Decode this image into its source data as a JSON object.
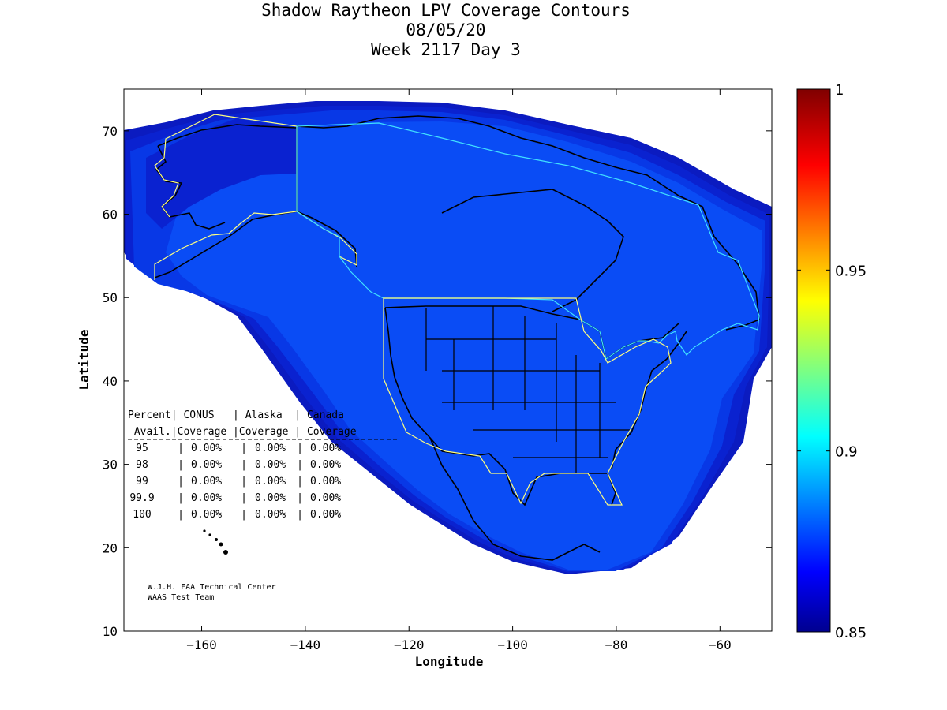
{
  "title": {
    "line1": "Shadow Raytheon LPV Coverage Contours",
    "line2": "08/05/20",
    "line3": "Week 2117 Day 3"
  },
  "axes": {
    "xlabel": "Longitude",
    "ylabel": "Latitude",
    "xlim": [
      -175,
      -50
    ],
    "ylim": [
      10,
      75
    ],
    "xticks": [
      -160,
      -140,
      -120,
      -100,
      -80,
      -60
    ],
    "yticks": [
      10,
      20,
      30,
      40,
      50,
      60,
      70
    ]
  },
  "colorbar": {
    "min": 0.85,
    "max": 1,
    "ticks": [
      {
        "value": 0.85,
        "label": "0.85"
      },
      {
        "value": 0.9,
        "label": "0.9"
      },
      {
        "value": 0.95,
        "label": "0.95"
      },
      {
        "value": 1,
        "label": "1"
      }
    ]
  },
  "table": {
    "header1": "Percent| CONUS   | Alaska  | Canada",
    "header2": " Avail.|Coverage |Coverage | Coverage",
    "rows": [
      {
        "percent": "95",
        "conus": "0.00%",
        "alaska": "0.00%",
        "canada": "0.00%"
      },
      {
        "percent": "98",
        "conus": "0.00%",
        "alaska": "0.00%",
        "canada": "0.00%"
      },
      {
        "percent": "99",
        "conus": "0.00%",
        "alaska": "0.00%",
        "canada": "0.00%"
      },
      {
        "percent": "99.9",
        "conus": "0.00%",
        "alaska": "0.00%",
        "canada": "0.00%"
      },
      {
        "percent": "100",
        "conus": "0.00%",
        "alaska": "0.00%",
        "canada": "0.00%"
      }
    ]
  },
  "credit": {
    "line1": "W.J.H. FAA Technical Center",
    "line2": "WAAS Test Team"
  },
  "colors": {
    "coverage_main": "#0a4cf5",
    "coverage_mid": "#0838e6",
    "coverage_edge": "#0a22d0",
    "coverage_outer": "#0b1bc0",
    "service_boundary_alaska": "#ffff80",
    "service_boundary_canada": "#40e0ff",
    "coastline": "#000000"
  }
}
